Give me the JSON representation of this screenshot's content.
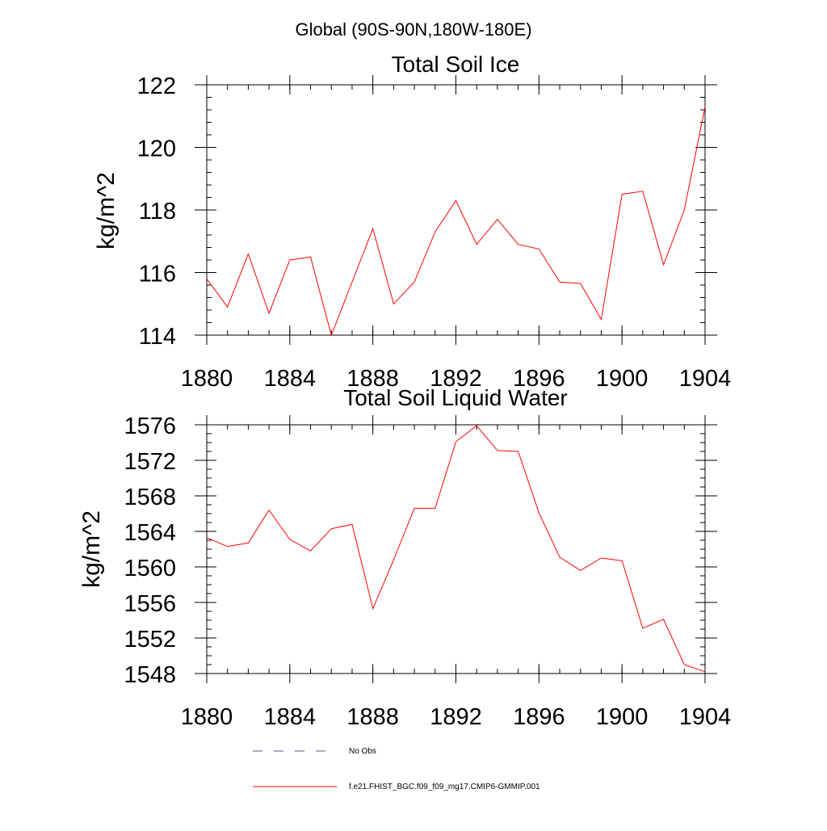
{
  "main_title": "Global (90S-90N,180W-180E)",
  "legend": {
    "items": [
      {
        "label": "No Obs",
        "style": "dashed",
        "color": "#4a5a8c"
      },
      {
        "label": "f.e21.FHIST_BGC.f09_f09_mg17.CMIP6-GMMIP.001",
        "style": "solid",
        "color": "#ff0000"
      }
    ]
  },
  "chart_data": [
    {
      "type": "line",
      "title": "Total Soil Ice",
      "xlabel": "",
      "ylabel": "kg/m^2",
      "xlim": [
        1880,
        1904
      ],
      "ylim": [
        114,
        122
      ],
      "xticks": [
        1880,
        1884,
        1888,
        1892,
        1896,
        1900,
        1904
      ],
      "yticks": [
        114,
        116,
        118,
        120,
        122
      ],
      "y_minor_step": 0.4,
      "x_minor_step": 1,
      "series": [
        {
          "name": "f.e21.FHIST_BGC.f09_f09_mg17.CMIP6-GMMIP.001",
          "color": "#ff0000",
          "x": [
            1880,
            1881,
            1882,
            1883,
            1884,
            1885,
            1886,
            1887,
            1888,
            1889,
            1890,
            1891,
            1892,
            1893,
            1894,
            1895,
            1896,
            1897,
            1898,
            1899,
            1900,
            1901,
            1902,
            1903,
            1904
          ],
          "values": [
            115.8,
            114.9,
            116.6,
            114.7,
            116.4,
            116.5,
            114.0,
            115.7,
            117.4,
            115.0,
            115.7,
            117.3,
            118.3,
            116.9,
            117.7,
            116.9,
            116.75,
            115.7,
            115.65,
            114.5,
            118.5,
            118.6,
            116.25,
            118.0,
            121.3
          ]
        }
      ]
    },
    {
      "type": "line",
      "title": "Total Soil Liquid Water",
      "xlabel": "",
      "ylabel": "kg/m^2",
      "xlim": [
        1880,
        1904
      ],
      "ylim": [
        1548,
        1576
      ],
      "xticks": [
        1880,
        1884,
        1888,
        1892,
        1896,
        1900,
        1904
      ],
      "yticks": [
        1548,
        1552,
        1556,
        1560,
        1564,
        1568,
        1572,
        1576
      ],
      "y_minor_step": 1,
      "x_minor_step": 1,
      "series": [
        {
          "name": "f.e21.FHIST_BGC.f09_f09_mg17.CMIP6-GMMIP.001",
          "color": "#ff0000",
          "x": [
            1880,
            1881,
            1882,
            1883,
            1884,
            1885,
            1886,
            1887,
            1888,
            1889,
            1890,
            1891,
            1892,
            1893,
            1894,
            1895,
            1896,
            1897,
            1898,
            1899,
            1900,
            1901,
            1902,
            1903,
            1904
          ],
          "values": [
            1563.3,
            1562.3,
            1562.7,
            1566.4,
            1563.1,
            1561.8,
            1564.3,
            1564.8,
            1555.3,
            1560.8,
            1566.6,
            1566.6,
            1574.1,
            1575.9,
            1573.1,
            1573.0,
            1566.1,
            1561.1,
            1559.6,
            1561.0,
            1560.7,
            1553.1,
            1554.1,
            1549.0,
            1548.2
          ]
        }
      ]
    }
  ]
}
